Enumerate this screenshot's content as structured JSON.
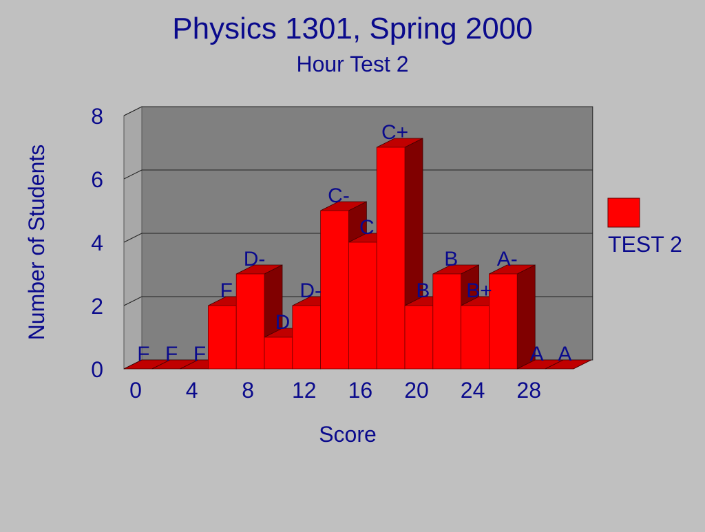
{
  "chart_data": {
    "type": "bar",
    "title": "Physics 1301, Spring 2000",
    "subtitle": "Hour Test 2",
    "xlabel": "Score",
    "ylabel": "Number of Students",
    "ylim": [
      0,
      8
    ],
    "yticks": [
      "0",
      "2",
      "4",
      "6",
      "8"
    ],
    "xticks": [
      "0",
      "4",
      "8",
      "12",
      "16",
      "20",
      "24",
      "28"
    ],
    "grid": true,
    "legend_position": "right",
    "bar_color": "#ff0000",
    "categories": [
      "0",
      "2",
      "4",
      "6",
      "8",
      "10",
      "12",
      "14",
      "16",
      "18",
      "20",
      "22",
      "24",
      "26",
      "28",
      "30"
    ],
    "grades": [
      "F",
      "F",
      "F",
      "F",
      "D-",
      "D",
      "D-",
      "C-",
      "C",
      "C+",
      "B",
      "B",
      "B+",
      "A-",
      "A",
      "A"
    ],
    "series": [
      {
        "name": "TEST 2",
        "values": [
          0,
          0,
          0,
          2,
          3,
          1,
          2,
          5,
          4,
          7,
          2,
          3,
          2,
          3,
          0,
          0
        ]
      }
    ]
  }
}
